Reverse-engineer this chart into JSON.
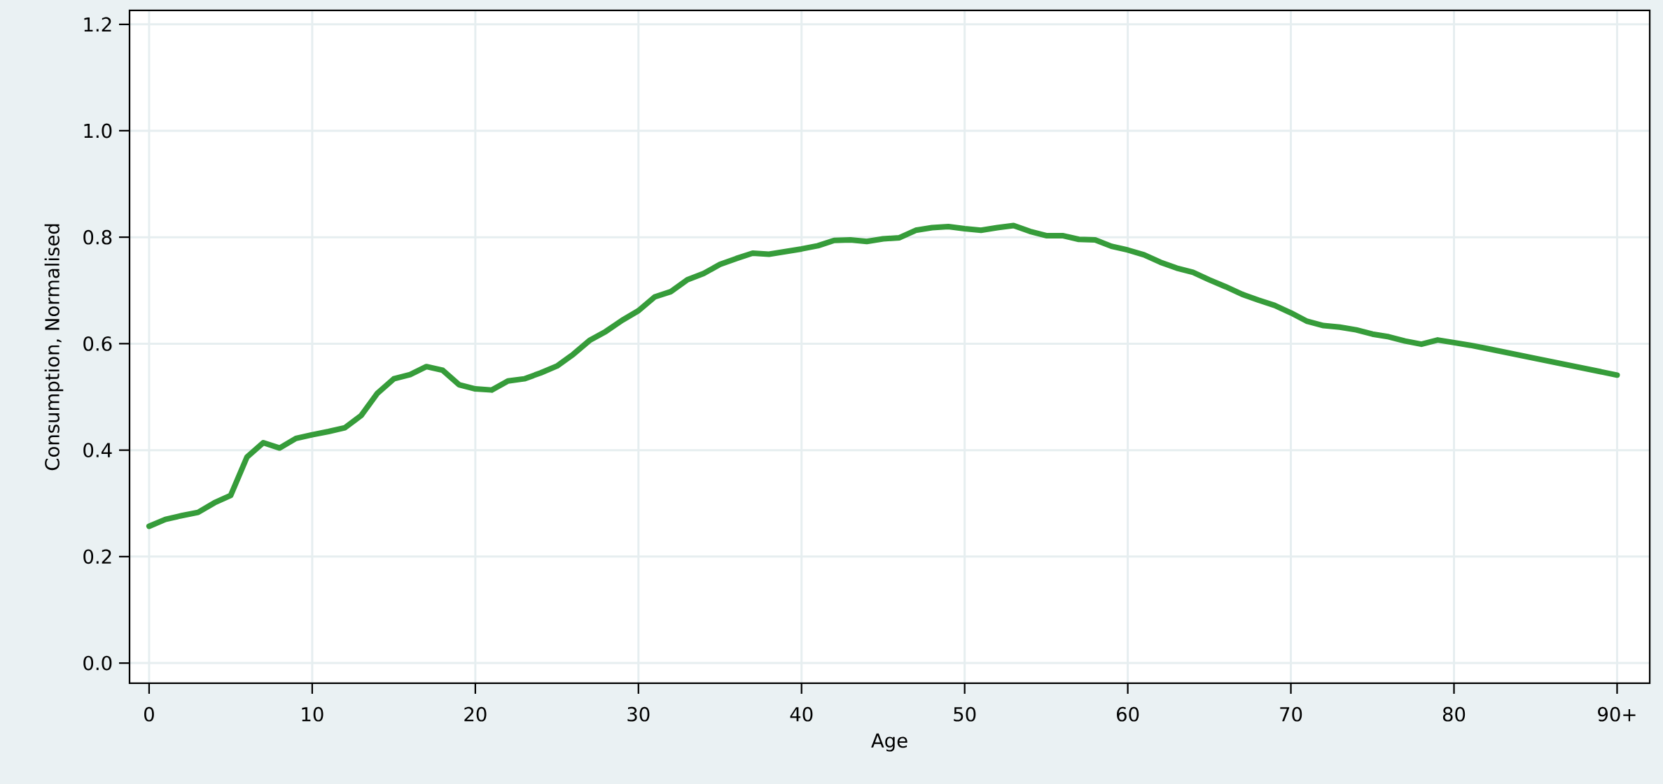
{
  "chart_data": {
    "type": "line",
    "xlabel": "Age",
    "ylabel": "Consumption, Normalised",
    "x": [
      0,
      1,
      2,
      3,
      4,
      5,
      6,
      7,
      8,
      9,
      10,
      11,
      12,
      13,
      14,
      15,
      16,
      17,
      18,
      19,
      20,
      21,
      22,
      23,
      24,
      25,
      26,
      27,
      28,
      29,
      30,
      31,
      32,
      33,
      34,
      35,
      36,
      37,
      38,
      39,
      40,
      41,
      42,
      43,
      44,
      45,
      46,
      47,
      48,
      49,
      50,
      51,
      52,
      53,
      54,
      55,
      56,
      57,
      58,
      59,
      60,
      61,
      62,
      63,
      64,
      65,
      66,
      67,
      68,
      69,
      70,
      71,
      72,
      73,
      74,
      75,
      76,
      77,
      78,
      79,
      80,
      81,
      82,
      90
    ],
    "values": [
      0.257,
      0.27,
      0.277,
      0.283,
      0.301,
      0.315,
      0.387,
      0.414,
      0.404,
      0.422,
      0.429,
      0.435,
      0.442,
      0.465,
      0.507,
      0.534,
      0.542,
      0.557,
      0.55,
      0.523,
      0.515,
      0.513,
      0.53,
      0.534,
      0.545,
      0.558,
      0.58,
      0.606,
      0.623,
      0.644,
      0.662,
      0.688,
      0.698,
      0.72,
      0.732,
      0.749,
      0.76,
      0.77,
      0.768,
      0.773,
      0.778,
      0.784,
      0.794,
      0.795,
      0.792,
      0.797,
      0.799,
      0.813,
      0.818,
      0.82,
      0.816,
      0.813,
      0.818,
      0.822,
      0.811,
      0.803,
      0.803,
      0.796,
      0.795,
      0.783,
      0.776,
      0.767,
      0.753,
      0.742,
      0.734,
      0.72,
      0.707,
      0.693,
      0.682,
      0.672,
      0.658,
      0.642,
      0.634,
      0.631,
      0.626,
      0.618,
      0.613,
      0.605,
      0.599,
      0.607,
      0.602,
      0.597,
      0.591,
      0.541
    ],
    "color": "#369c3a",
    "xlim": [
      -1.2,
      92
    ],
    "ylim": [
      -0.038,
      1.226
    ],
    "xticks": [
      0,
      10,
      20,
      30,
      40,
      50,
      60,
      70,
      80,
      {
        "value": 90,
        "label": "90+"
      }
    ],
    "yticks": [
      {
        "value": 0,
        "label": "0.0"
      },
      {
        "value": 0.2,
        "label": "0.2"
      },
      {
        "value": 0.4,
        "label": "0.4"
      },
      {
        "value": 0.6,
        "label": "0.6"
      },
      {
        "value": 0.8,
        "label": "0.8"
      },
      {
        "value": 1.0,
        "label": "1.0"
      },
      {
        "value": 1.2,
        "label": "1.2"
      }
    ],
    "grid": true,
    "marker": "none",
    "line_style": "solid"
  }
}
